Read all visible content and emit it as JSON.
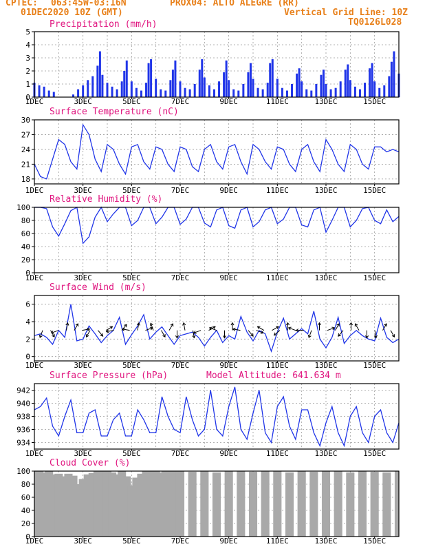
{
  "header": {
    "line1_left": "CPTEC:",
    "coords": "063:45W-03:16N",
    "station": "PROX04: ALTO ALEGRE (RR)",
    "date": "01DEC2020 10Z (GMT)",
    "grid_note": "Vertical Grid Line: 10Z",
    "model_code": "TQ0126L028",
    "model_altitude": "Model Altitude: 641.634 m"
  },
  "colors": {
    "header": "#e8801a",
    "title": "#e0157f",
    "series": "#2035e8",
    "cloud": "#a9a9a9",
    "arrow": "#000000"
  },
  "x_axis": {
    "tick_labels": [
      "1DEC",
      "3DEC",
      "5DEC",
      "7DEC",
      "9DEC",
      "11DEC",
      "13DEC",
      "15DEC"
    ],
    "tick_days": [
      1,
      3,
      5,
      7,
      9,
      11,
      13,
      15
    ],
    "range_days": [
      1,
      16
    ]
  },
  "chart_data": [
    {
      "type": "bar",
      "title": "Precipitation (mm/h)",
      "ylim": [
        0,
        5
      ],
      "yticks": [
        0,
        1,
        2,
        3,
        4,
        5
      ],
      "x": [
        1.0,
        1.2,
        1.4,
        1.6,
        1.8,
        2.6,
        2.8,
        3.0,
        3.2,
        3.4,
        3.6,
        3.7,
        3.8,
        4.0,
        4.2,
        4.4,
        4.6,
        4.7,
        4.8,
        5.0,
        5.2,
        5.4,
        5.6,
        5.7,
        5.8,
        6.0,
        6.2,
        6.4,
        6.6,
        6.7,
        6.8,
        7.0,
        7.2,
        7.4,
        7.6,
        7.8,
        7.9,
        8.0,
        8.2,
        8.4,
        8.6,
        8.8,
        8.9,
        9.0,
        9.2,
        9.4,
        9.6,
        9.8,
        9.9,
        10.0,
        10.2,
        10.4,
        10.6,
        10.7,
        10.8,
        11.0,
        11.2,
        11.4,
        11.6,
        11.8,
        11.9,
        12.0,
        12.2,
        12.4,
        12.6,
        12.8,
        12.9,
        13.0,
        13.2,
        13.4,
        13.6,
        13.8,
        13.9,
        14.0,
        14.2,
        14.4,
        14.6,
        14.8,
        14.9,
        15.0,
        15.2,
        15.4,
        15.6,
        15.7,
        15.8,
        16.0
      ],
      "values": [
        1.1,
        0.9,
        0.8,
        0.5,
        0.4,
        0.2,
        0.6,
        0.9,
        1.3,
        1.6,
        2.4,
        3.5,
        1.7,
        1.1,
        0.8,
        0.6,
        1.2,
        2.0,
        2.8,
        1.2,
        0.7,
        0.5,
        1.1,
        2.6,
        2.9,
        1.4,
        0.6,
        0.5,
        1.3,
        2.1,
        2.8,
        1.2,
        0.7,
        0.6,
        1.0,
        2.1,
        2.9,
        1.5,
        0.9,
        0.6,
        1.2,
        1.9,
        2.8,
        1.3,
        0.6,
        0.5,
        1.0,
        1.9,
        2.6,
        1.4,
        0.7,
        0.6,
        1.1,
        2.6,
        2.9,
        1.4,
        0.7,
        0.5,
        1.0,
        1.8,
        2.2,
        1.2,
        0.6,
        0.5,
        1.0,
        1.7,
        2.1,
        1.0,
        0.6,
        0.7,
        1.2,
        2.1,
        2.5,
        1.3,
        0.8,
        0.6,
        1.1,
        2.2,
        2.6,
        1.2,
        0.7,
        0.9,
        1.6,
        2.7,
        3.5,
        1.8
      ]
    },
    {
      "type": "line",
      "title": "Surface Temperature (nC)",
      "ylim": [
        17,
        30
      ],
      "yticks": [
        18,
        21,
        24,
        27,
        30
      ],
      "x": [
        1.0,
        1.25,
        1.5,
        1.75,
        2.0,
        2.25,
        2.5,
        2.75,
        3.0,
        3.25,
        3.5,
        3.75,
        4.0,
        4.25,
        4.5,
        4.75,
        5.0,
        5.25,
        5.5,
        5.75,
        6.0,
        6.25,
        6.5,
        6.75,
        7.0,
        7.25,
        7.5,
        7.75,
        8.0,
        8.25,
        8.5,
        8.75,
        9.0,
        9.25,
        9.5,
        9.75,
        10.0,
        10.25,
        10.5,
        10.75,
        11.0,
        11.25,
        11.5,
        11.75,
        12.0,
        12.25,
        12.5,
        12.75,
        13.0,
        13.25,
        13.5,
        13.75,
        14.0,
        14.25,
        14.5,
        14.75,
        15.0,
        15.25,
        15.5,
        15.75,
        16.0
      ],
      "values": [
        21,
        18.5,
        18,
        22,
        26,
        25,
        21.5,
        20,
        29,
        27,
        22,
        19.5,
        25,
        24,
        21,
        19,
        24.5,
        25,
        21.5,
        20,
        24.5,
        24,
        21,
        19.5,
        24.5,
        24,
        20.5,
        19.5,
        24,
        25,
        21.5,
        20,
        24.5,
        25,
        21.5,
        19,
        25,
        24,
        21.5,
        20,
        24.5,
        24,
        21,
        19.5,
        24,
        25,
        21.5,
        19.5,
        26,
        24,
        21,
        19.5,
        25,
        24,
        21,
        20,
        24.5,
        24.5,
        23.5,
        24,
        23.5
      ]
    },
    {
      "type": "line",
      "title": "Relative Humidity (%)",
      "ylim": [
        0,
        100
      ],
      "yticks": [
        0,
        20,
        40,
        60,
        80,
        100
      ],
      "x": [
        1.0,
        1.25,
        1.5,
        1.75,
        2.0,
        2.25,
        2.5,
        2.75,
        3.0,
        3.25,
        3.5,
        3.75,
        4.0,
        4.25,
        4.5,
        4.75,
        5.0,
        5.25,
        5.5,
        5.75,
        6.0,
        6.25,
        6.5,
        6.75,
        7.0,
        7.25,
        7.5,
        7.75,
        8.0,
        8.25,
        8.5,
        8.75,
        9.0,
        9.25,
        9.5,
        9.75,
        10.0,
        10.25,
        10.5,
        10.75,
        11.0,
        11.25,
        11.5,
        11.75,
        12.0,
        12.25,
        12.5,
        12.75,
        13.0,
        13.25,
        13.5,
        13.75,
        14.0,
        14.25,
        14.5,
        14.75,
        15.0,
        15.25,
        15.5,
        15.75,
        16.0
      ],
      "values": [
        100,
        100,
        98,
        70,
        56,
        75,
        95,
        100,
        45,
        55,
        85,
        100,
        78,
        90,
        100,
        100,
        72,
        80,
        100,
        100,
        75,
        85,
        100,
        100,
        74,
        82,
        100,
        100,
        76,
        70,
        96,
        100,
        72,
        68,
        96,
        100,
        70,
        78,
        96,
        100,
        75,
        82,
        100,
        100,
        73,
        70,
        96,
        100,
        62,
        80,
        100,
        100,
        70,
        80,
        98,
        100,
        80,
        75,
        96,
        78,
        86
      ]
    },
    {
      "type": "line",
      "title": "Surface Wind (m/s)",
      "ylim": [
        -0.5,
        7
      ],
      "yticks": [
        0,
        2,
        4,
        6
      ],
      "x": [
        1.0,
        1.25,
        1.5,
        1.75,
        2.0,
        2.25,
        2.5,
        2.75,
        3.0,
        3.25,
        3.5,
        3.75,
        4.0,
        4.25,
        4.5,
        4.75,
        5.0,
        5.25,
        5.5,
        5.75,
        6.0,
        6.25,
        6.5,
        6.75,
        7.0,
        7.25,
        7.5,
        7.75,
        8.0,
        8.25,
        8.5,
        8.75,
        9.0,
        9.25,
        9.5,
        9.75,
        10.0,
        10.25,
        10.5,
        10.75,
        11.0,
        11.25,
        11.5,
        11.75,
        12.0,
        12.25,
        12.5,
        12.75,
        13.0,
        13.25,
        13.5,
        13.75,
        14.0,
        14.25,
        14.5,
        14.75,
        15.0,
        15.25,
        15.5,
        15.75,
        16.0
      ],
      "values": [
        2.4,
        2.6,
        2.2,
        1.4,
        3.0,
        2.2,
        6.0,
        1.8,
        2.0,
        3.5,
        2.6,
        1.6,
        2.4,
        3.0,
        4.5,
        1.4,
        2.5,
        3.5,
        4.8,
        2.0,
        2.8,
        3.4,
        2.4,
        1.4,
        2.4,
        2.6,
        2.8,
        2.2,
        1.2,
        2.2,
        3.0,
        1.6,
        2.4,
        2.0,
        4.6,
        2.8,
        1.8,
        3.0,
        2.6,
        0.6,
        2.8,
        4.4,
        2.0,
        2.6,
        3.2,
        2.6,
        5.2,
        2.0,
        1.0,
        2.2,
        4.5,
        1.5,
        2.4,
        3.0,
        2.4,
        2.0,
        1.8,
        4.4,
        2.2,
        1.6,
        2.0
      ],
      "arrow_headings": [
        250,
        300,
        200,
        80,
        60,
        10,
        240,
        310,
        30,
        190,
        50,
        170,
        80,
        20,
        110,
        300,
        60,
        270,
        100,
        280,
        200,
        30,
        160,
        270,
        90,
        170,
        310,
        340,
        150,
        30,
        220,
        90,
        160,
        180,
        250,
        90,
        20,
        60,
        230,
        90,
        120,
        270,
        280,
        60,
        300
      ]
    },
    {
      "type": "line",
      "title": "Surface Pressure (hPa)",
      "ylim": [
        933,
        943
      ],
      "yticks": [
        934,
        936,
        938,
        940,
        942
      ],
      "x": [
        1.0,
        1.25,
        1.5,
        1.75,
        2.0,
        2.25,
        2.5,
        2.75,
        3.0,
        3.25,
        3.5,
        3.75,
        4.0,
        4.25,
        4.5,
        4.75,
        5.0,
        5.25,
        5.5,
        5.75,
        6.0,
        6.25,
        6.5,
        6.75,
        7.0,
        7.25,
        7.5,
        7.75,
        8.0,
        8.25,
        8.5,
        8.75,
        9.0,
        9.25,
        9.5,
        9.75,
        10.0,
        10.25,
        10.5,
        10.75,
        11.0,
        11.25,
        11.5,
        11.75,
        12.0,
        12.25,
        12.5,
        12.75,
        13.0,
        13.25,
        13.5,
        13.75,
        14.0,
        14.25,
        14.5,
        14.75,
        15.0,
        15.25,
        15.5,
        15.75,
        16.0
      ],
      "values": [
        939,
        939.5,
        940.8,
        936.5,
        935,
        938,
        940.5,
        935.5,
        935.5,
        938.5,
        939,
        935,
        935,
        937.5,
        938.5,
        935,
        935,
        939,
        937.5,
        935.5,
        935.5,
        941,
        938,
        936,
        935.5,
        941,
        937.5,
        935,
        936,
        942,
        936,
        935,
        939.5,
        942.5,
        936,
        934.5,
        938.5,
        942,
        935.5,
        934,
        939.5,
        941,
        936.5,
        934.5,
        939,
        939,
        935.5,
        933.5,
        937,
        939.5,
        935.5,
        933.5,
        938,
        939.5,
        935.5,
        934,
        938,
        939,
        935.5,
        934,
        937
      ]
    },
    {
      "type": "bar",
      "title": "Cloud Cover (%)",
      "ylim": [
        0,
        100
      ],
      "yticks": [
        0,
        20,
        40,
        60,
        80,
        100
      ],
      "x": [
        1.0,
        1.2,
        1.4,
        1.6,
        1.8,
        2.0,
        2.2,
        2.4,
        2.6,
        2.8,
        2.9,
        3.0,
        3.2,
        3.4,
        3.6,
        3.8,
        4.0,
        4.2,
        4.4,
        4.6,
        4.8,
        5.0,
        5.2,
        5.4,
        5.6,
        5.8,
        6.0,
        6.2,
        6.4,
        6.6,
        6.8,
        7.0,
        7.5,
        8.0,
        8.5,
        9.0,
        9.5,
        10.0,
        10.5,
        11.0,
        11.5,
        12.0,
        12.5,
        13.0,
        13.5,
        14.0,
        14.5,
        15.0,
        15.5,
        16.0
      ],
      "values": [
        100,
        100,
        98,
        100,
        95,
        96,
        92,
        96,
        93,
        80,
        48,
        88,
        95,
        97,
        100,
        100,
        100,
        98,
        95,
        100,
        92,
        78,
        90,
        96,
        100,
        100,
        100,
        98,
        100,
        100,
        100,
        100,
        99,
        100,
        98,
        100,
        100,
        99,
        100,
        100,
        98,
        100,
        99,
        100,
        100,
        98,
        100,
        99,
        98,
        100
      ]
    }
  ]
}
